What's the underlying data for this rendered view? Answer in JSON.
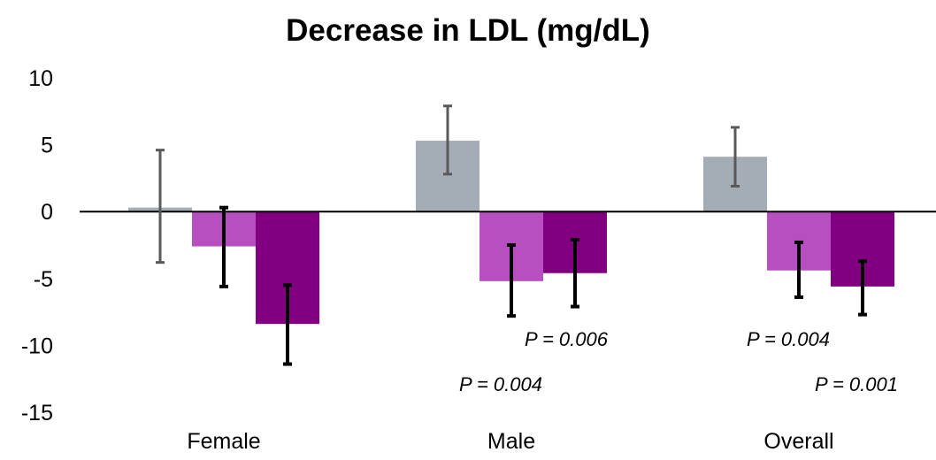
{
  "chart_data": {
    "type": "bar",
    "title": "Decrease in LDL (mg/dL)",
    "xlabel": "",
    "ylabel": "",
    "ylim": [
      -15,
      10
    ],
    "yticks": [
      10,
      5,
      0,
      -5,
      -10,
      -15
    ],
    "ytick_labels": [
      "10",
      "5",
      "0",
      "-5",
      "-10",
      "-15"
    ],
    "categories": [
      "Female",
      "Male",
      "Overall"
    ],
    "grid": false,
    "legend": "none",
    "series": [
      {
        "color": "#a4acb6",
        "error_color": "#595959",
        "values": [
          0.3,
          5.3,
          4.1
        ],
        "error_low": [
          -3.8,
          2.8,
          1.9
        ],
        "error_high": [
          4.6,
          7.9,
          6.3
        ]
      },
      {
        "color": "#b84fc0",
        "error_color": "#000000",
        "values": [
          -2.6,
          -5.2,
          -4.4
        ],
        "error_low": [
          -5.6,
          -7.8,
          -6.4
        ],
        "error_high": [
          0.3,
          -2.5,
          -2.3
        ]
      },
      {
        "color": "#800080",
        "error_color": "#000000",
        "values": [
          -8.4,
          -4.6,
          -5.6
        ],
        "error_low": [
          -11.4,
          -7.1,
          -7.7
        ],
        "error_high": [
          -5.5,
          -2.1,
          -3.7
        ]
      }
    ],
    "annotations": [
      {
        "text": "P = 0.004",
        "category": "Male",
        "series": 1
      },
      {
        "text": "P = 0.006",
        "category": "Male",
        "series": 2
      },
      {
        "text": "P = 0.004",
        "category": "Overall",
        "series": 1
      },
      {
        "text": "P = 0.001",
        "category": "Overall",
        "series": 2
      }
    ]
  }
}
